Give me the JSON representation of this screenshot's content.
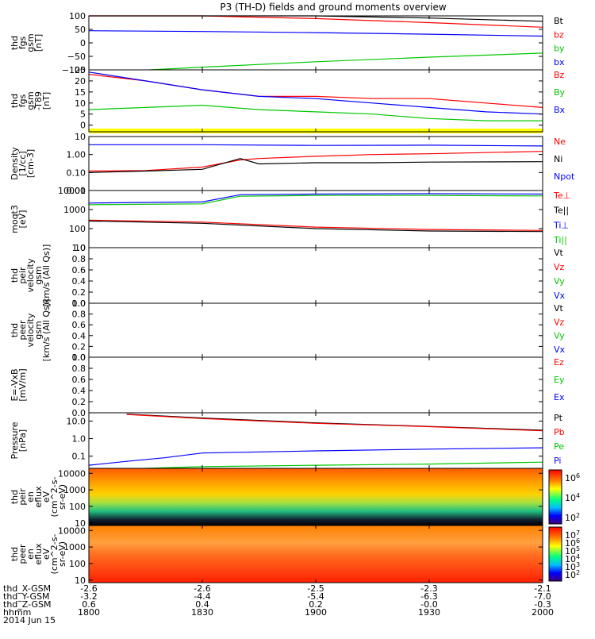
{
  "title": "P3 (TH-D) fields and ground moments overview",
  "x_ticks": [
    {
      "hhmm": "1800",
      "x": "-2.6",
      "y": "-3.2",
      "z": "0.6"
    },
    {
      "hhmm": "1830",
      "x": "-2.6",
      "y": "-4.4",
      "z": "0.4"
    },
    {
      "hhmm": "1900",
      "x": "-2.5",
      "y": "-5.4",
      "z": "0.2"
    },
    {
      "hhmm": "1930",
      "x": "-2.3",
      "y": "-6.3",
      "z": "-0.0"
    },
    {
      "hhmm": "2000",
      "x": "-2.1",
      "y": "-7.0",
      "z": "-0.3"
    }
  ],
  "footer": {
    "x_label": "thd_X-GSM",
    "y_label": "thd_Y-GSM",
    "z_label": "thd_Z-GSM",
    "time_label": "hhmm",
    "date": "2014 Jun 15"
  },
  "colors": {
    "black": "#000000",
    "red": "#ff0000",
    "green": "#00c800",
    "blue": "#0000ff",
    "yellow": "#ffff00"
  },
  "chart_data": [
    {
      "type": "line",
      "ylabel": [
        "thd",
        "fgs",
        "gsm",
        "[nT]"
      ],
      "yticks": [
        "100",
        "50",
        "0",
        "−50",
        "−100"
      ],
      "ylim": [
        -100,
        100
      ],
      "legend": [
        "Bt",
        "bz",
        "by",
        "bx"
      ],
      "series": [
        {
          "name": "Bt",
          "x": [
            1800,
            1830,
            1900,
            1930,
            2000
          ],
          "y": [
            100,
            100,
            100,
            92,
            80
          ]
        },
        {
          "name": "bz",
          "x": [
            1800,
            1830,
            1900,
            1930,
            2000
          ],
          "y": [
            100,
            100,
            90,
            75,
            58
          ]
        },
        {
          "name": "by",
          "x": [
            1816,
            1830,
            1900,
            1930,
            2000
          ],
          "y": [
            -100,
            -90,
            -70,
            -53,
            -38
          ]
        },
        {
          "name": "bx",
          "x": [
            1800,
            1830,
            1900,
            1930,
            2000
          ],
          "y": [
            45,
            42,
            38,
            32,
            25
          ]
        }
      ]
    },
    {
      "type": "line",
      "ylabel": [
        "thd",
        "fgs",
        "gsm",
        "-T89",
        "[nT]"
      ],
      "yticks": [
        "25",
        "20",
        "15",
        "10",
        "5",
        "0"
      ],
      "ylim": [
        -3,
        25
      ],
      "legend": [
        "Bz",
        "By",
        "Bx"
      ],
      "series": [
        {
          "name": "Bz",
          "x": [
            1800,
            1815,
            1830,
            1845,
            1900,
            1915,
            1930,
            1945,
            2000
          ],
          "y": [
            23,
            20,
            16,
            13,
            13,
            12,
            12,
            10,
            8
          ]
        },
        {
          "name": "By",
          "x": [
            1800,
            1815,
            1830,
            1845,
            1900,
            1915,
            1930,
            1945,
            2000
          ],
          "y": [
            7,
            8,
            9,
            7,
            6,
            5,
            3,
            2,
            2
          ]
        },
        {
          "name": "Bx",
          "x": [
            1800,
            1815,
            1830,
            1845,
            1900,
            1915,
            1930,
            1945,
            2000
          ],
          "y": [
            24,
            20,
            16,
            13,
            12,
            10,
            8,
            6,
            5
          ]
        }
      ]
    },
    {
      "type": "line",
      "ylabel": [
        "Density",
        "[1/cc]",
        "[cm-3]"
      ],
      "yticks": [
        "10",
        "1.00",
        "0.10",
        "0.01"
      ],
      "ylim": [
        0.01,
        10
      ],
      "legend": [
        "Ne",
        "Ni",
        "Npot"
      ],
      "series": [
        {
          "name": "Ne",
          "x": [
            1800,
            1815,
            1830,
            1840,
            1845,
            1900,
            1915,
            1930,
            2000
          ],
          "y": [
            0.12,
            0.13,
            0.2,
            0.5,
            0.6,
            0.8,
            1.0,
            1.1,
            1.5
          ]
        },
        {
          "name": "Ni",
          "x": [
            1800,
            1815,
            1830,
            1840,
            1845,
            1900,
            1915,
            1930,
            2000
          ],
          "y": [
            0.1,
            0.12,
            0.15,
            0.6,
            0.3,
            0.35,
            0.35,
            0.38,
            0.4
          ]
        },
        {
          "name": "Npot",
          "x": [
            1800,
            1830,
            1900,
            1930,
            2000
          ],
          "y": [
            3.5,
            3.5,
            3.2,
            3.3,
            3.0
          ]
        }
      ]
    },
    {
      "type": "line",
      "ylabel": [
        "moqt3",
        "[eV]"
      ],
      "yticks": [
        "10000",
        "1000",
        "100",
        "10"
      ],
      "ylim": [
        10,
        10000
      ],
      "legend": [
        "Te⊥",
        "Te||",
        "Ti⊥",
        "Ti||"
      ],
      "series": [
        {
          "name": "Te⊥",
          "x": [
            1800,
            1830,
            1900,
            1930,
            2000
          ],
          "y": [
            280,
            220,
            120,
            90,
            80
          ]
        },
        {
          "name": "Te||",
          "x": [
            1800,
            1830,
            1900,
            1930,
            2000
          ],
          "y": [
            250,
            190,
            100,
            75,
            70
          ]
        },
        {
          "name": "Ti⊥",
          "x": [
            1800,
            1830,
            1840,
            1900,
            1930,
            2000
          ],
          "y": [
            2200,
            2500,
            6000,
            6500,
            6800,
            6500
          ]
        },
        {
          "name": "Ti||",
          "x": [
            1800,
            1830,
            1840,
            1900,
            1930,
            2000
          ],
          "y": [
            1800,
            2000,
            5000,
            5500,
            5500,
            5200
          ]
        }
      ]
    },
    {
      "type": "line",
      "ylabel": [
        "thd",
        "peir",
        "velocity",
        "gsm",
        "[km/s (All Qs)]"
      ],
      "yticks": [
        "1.0",
        "0.8",
        "0.6",
        "0.4",
        "0.2",
        "0.0"
      ],
      "ylim": [
        0,
        1
      ],
      "legend": [
        "Vt",
        "Vz",
        "Vy",
        "Vx"
      ],
      "series": []
    },
    {
      "type": "line",
      "ylabel": [
        "thd",
        "peer",
        "velocity",
        "gsm",
        "[km/s (All Qs)]"
      ],
      "yticks": [
        "1.0",
        "0.8",
        "0.6",
        "0.4",
        "0.2",
        "0.0"
      ],
      "ylim": [
        0,
        1
      ],
      "legend": [
        "Vt",
        "Vz",
        "Vy",
        "Vx"
      ],
      "series": []
    },
    {
      "type": "line",
      "ylabel": [
        "E=-VxB",
        "[mV/m]"
      ],
      "yticks": [
        "1.0",
        "0.8",
        "0.6",
        "0.4",
        "0.2",
        "0.0"
      ],
      "ylim": [
        0,
        1
      ],
      "legend": [
        "Ez",
        "Ey",
        "Ex"
      ],
      "series": []
    },
    {
      "type": "line",
      "ylabel": [
        "Pressure",
        "[nPa]"
      ],
      "yticks": [
        "10.0",
        "1.0",
        "0.1"
      ],
      "ylim": [
        0.02,
        30
      ],
      "legend": [
        "Pt",
        "Pb",
        "Pe",
        "Pi"
      ],
      "series": [
        {
          "name": "Pt",
          "x": [
            1810,
            1830,
            1900,
            1930,
            2000
          ],
          "y": [
            25,
            15,
            8,
            5,
            3
          ]
        },
        {
          "name": "Pb",
          "x": [
            1810,
            1830,
            1900,
            1930,
            2000
          ],
          "y": [
            24,
            14,
            7.5,
            4.8,
            2.8
          ]
        },
        {
          "name": "Pe",
          "x": [
            1815,
            1830,
            1900,
            1930,
            2000
          ],
          "y": [
            0.02,
            0.025,
            0.03,
            0.035,
            0.045
          ]
        },
        {
          "name": "Pi",
          "x": [
            1800,
            1810,
            1820,
            1830,
            1900,
            1930,
            2000
          ],
          "y": [
            0.03,
            0.05,
            0.08,
            0.15,
            0.2,
            0.25,
            0.3
          ]
        }
      ]
    },
    {
      "type": "heatmap",
      "ylabel": [
        "thd",
        "peir",
        "en",
        "eflux",
        "eV",
        "(cm^2-s-",
        "sr-eV)"
      ],
      "yticks": [
        "10000",
        "1000",
        "100",
        "10"
      ],
      "colorbar_ticks": [
        "10^6",
        "10^4",
        "10^2"
      ]
    },
    {
      "type": "heatmap",
      "ylabel": [
        "thd",
        "peer",
        "en",
        "eflux",
        "eV",
        "(cm^2-s-",
        "sr-eV)"
      ],
      "yticks": [
        "10000",
        "1000",
        "100",
        "10"
      ],
      "colorbar_ticks": [
        "10^7",
        "10^6",
        "10^5",
        "10^4",
        "10^3",
        "10^2"
      ]
    }
  ]
}
